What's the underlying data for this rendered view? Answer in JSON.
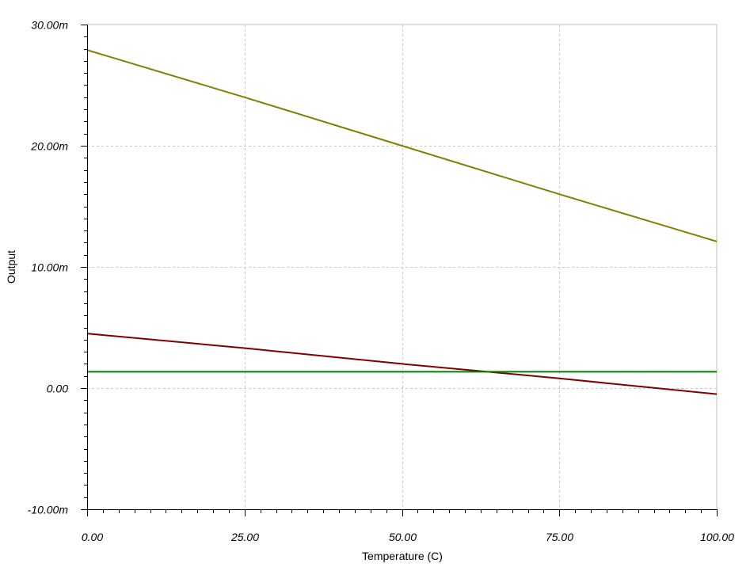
{
  "chart_data": {
    "type": "line",
    "xlabel": "Temperature (C)",
    "ylabel": "Output",
    "xlim": [
      0,
      100
    ],
    "ylim": [
      -0.01,
      0.03
    ],
    "x_ticks": [
      0,
      25,
      50,
      75,
      100
    ],
    "x_tick_labels": [
      "0.00",
      "25.00",
      "50.00",
      "75.00",
      "100.00"
    ],
    "y_ticks": [
      -0.01,
      0,
      0.01,
      0.02,
      0.03
    ],
    "y_tick_labels": [
      "-10.00m",
      "0.00",
      "10.00m",
      "20.00m",
      "30.00m"
    ],
    "x_minor_step": 2.5,
    "y_minor_step": 0.001,
    "grid": true,
    "series": [
      {
        "x": [
          0,
          25,
          50,
          75,
          100
        ],
        "y": [
          0.0279,
          0.024,
          0.02,
          0.016,
          0.0121
        ],
        "color": "#808000"
      },
      {
        "x": [
          0,
          25,
          50,
          75,
          100
        ],
        "y": [
          0.0045,
          0.0033,
          0.002,
          0.0008,
          -0.0005
        ],
        "color": "#800000"
      },
      {
        "x": [
          0,
          100
        ],
        "y": [
          0.00135,
          0.00135
        ],
        "color": "#008000"
      }
    ]
  }
}
